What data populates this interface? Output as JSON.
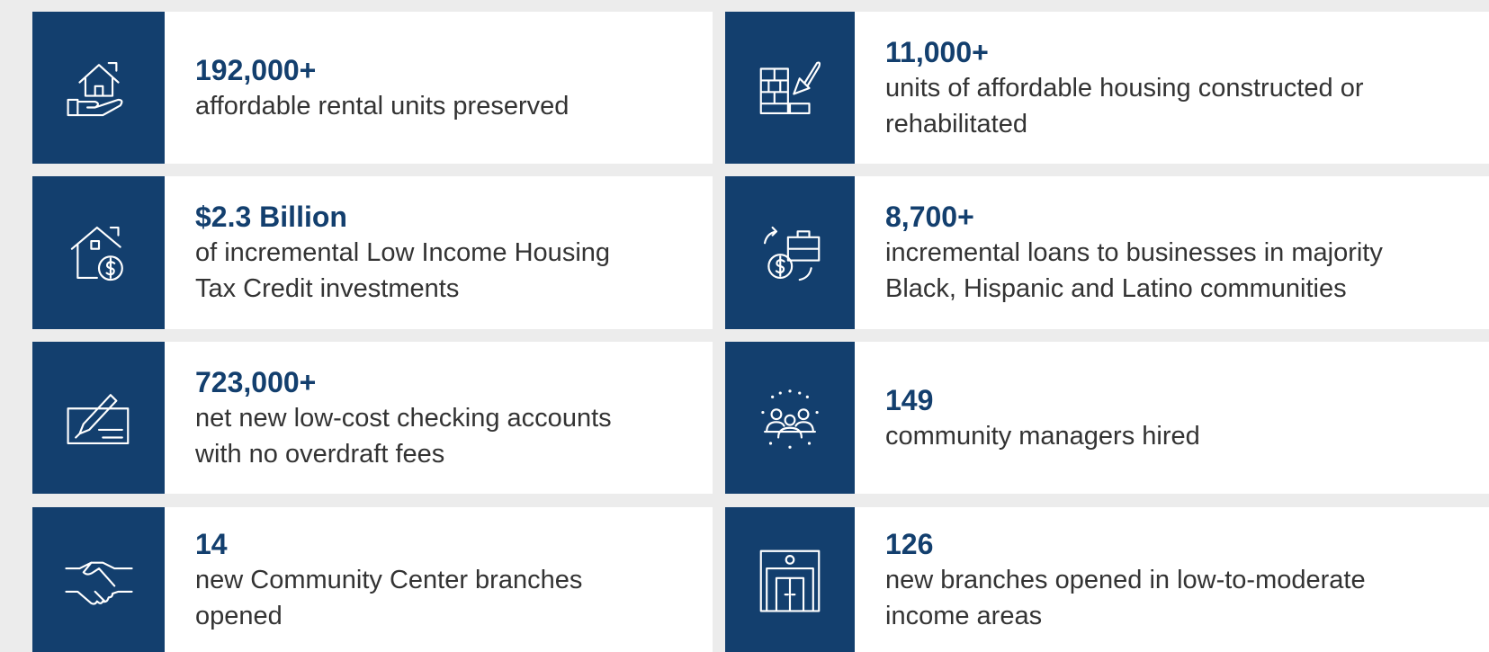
{
  "items": [
    {
      "value": "192,000+",
      "lines": [
        "affordable rental units preserved"
      ]
    },
    {
      "value": "11,000+",
      "lines": [
        "units of affordable housing constructed or",
        "rehabilitated"
      ]
    },
    {
      "value": "$2.3 Billion",
      "lines": [
        "of incremental Low Income Housing",
        "Tax Credit investments"
      ]
    },
    {
      "value": "8,700+",
      "lines": [
        "incremental loans to businesses in majority",
        "Black, Hispanic and Latino communities"
      ]
    },
    {
      "value": "723,000+",
      "lines": [
        "net new low-cost checking accounts",
        "with no overdraft fees"
      ]
    },
    {
      "value": "149",
      "lines": [
        "community managers hired"
      ]
    },
    {
      "value": "14",
      "lines": [
        "new Community Center branches",
        "opened"
      ]
    },
    {
      "value": "126",
      "lines": [
        "new branches opened in low-to-moderate",
        "income areas"
      ]
    }
  ]
}
